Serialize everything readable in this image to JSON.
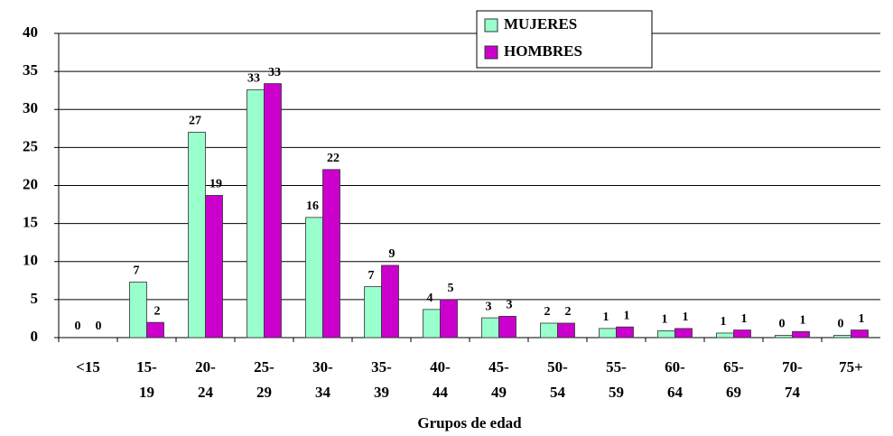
{
  "chart_data": {
    "type": "bar",
    "x_label": "Grupos de edad",
    "categories": [
      [
        "<15"
      ],
      [
        "15-",
        "19"
      ],
      [
        "20-",
        "24"
      ],
      [
        "25-",
        "29"
      ],
      [
        "30-",
        "34"
      ],
      [
        "35-",
        "39"
      ],
      [
        "40-",
        "44"
      ],
      [
        "45-",
        "49"
      ],
      [
        "50-",
        "54"
      ],
      [
        "55-",
        "59"
      ],
      [
        "60-",
        "64"
      ],
      [
        "65-",
        "69"
      ],
      [
        "70-",
        "74"
      ],
      [
        "75+"
      ]
    ],
    "series": [
      {
        "name": "MUJERES",
        "color": "#99ffcc",
        "values": [
          0,
          7.3,
          27,
          32.6,
          15.8,
          6.7,
          3.7,
          2.6,
          1.9,
          1.2,
          0.9,
          0.6,
          0.3,
          0.3
        ],
        "value_labels": [
          "0",
          "7",
          "27",
          "33",
          "16",
          "7",
          "4",
          "3",
          "2",
          "1",
          "1",
          "1",
          "0",
          "0"
        ]
      },
      {
        "name": "HOMBRES",
        "color": "#cc00cc",
        "values": [
          0,
          2,
          18.7,
          33.4,
          22.1,
          9.5,
          5,
          2.8,
          1.9,
          1.4,
          1.2,
          1,
          0.8,
          1
        ],
        "value_labels": [
          "0",
          "2",
          "19",
          "33",
          "22",
          "9",
          "5",
          "3",
          "2",
          "1",
          "1",
          "1",
          "1",
          "1"
        ]
      }
    ],
    "ylim": [
      0,
      40
    ],
    "yticks": [
      0,
      5,
      10,
      15,
      20,
      25,
      30,
      35,
      40
    ],
    "grid": true
  }
}
